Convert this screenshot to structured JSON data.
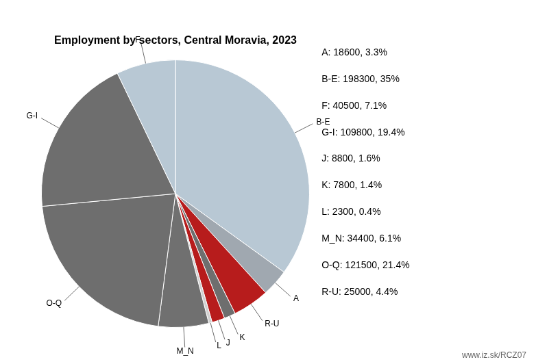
{
  "chart_data": {
    "type": "pie",
    "title": "Employment by sectors, Central Moravia, 2023",
    "categories": [
      "B-E",
      "A",
      "R-U",
      "K",
      "J",
      "L",
      "M_N",
      "O-Q",
      "G-I",
      "F"
    ],
    "values": [
      198300,
      18600,
      25000,
      7800,
      8800,
      2300,
      34400,
      121500,
      109800,
      40500
    ],
    "colors": [
      "#b8c8d4",
      "#a0a8b0",
      "#b71c1c",
      "#6e6e6e",
      "#b71c1c",
      "#d0d0d0",
      "#707070",
      "#6e6e6e",
      "#6e6e6e",
      "#b8c8d4"
    ],
    "annotations": [
      "A: 18600, 3.3%",
      "B-E: 198300, 35%",
      "F: 40500, 7.1%",
      "G-I: 109800, 19.4%",
      "J: 8800, 1.6%",
      "K: 7800, 1.4%",
      "L: 2300, 0.4%",
      "M_N: 34400, 6.1%",
      "O-Q: 121500, 21.4%",
      "R-U: 25000, 4.4%",
      "www.iz.sk/RCZ07"
    ]
  }
}
